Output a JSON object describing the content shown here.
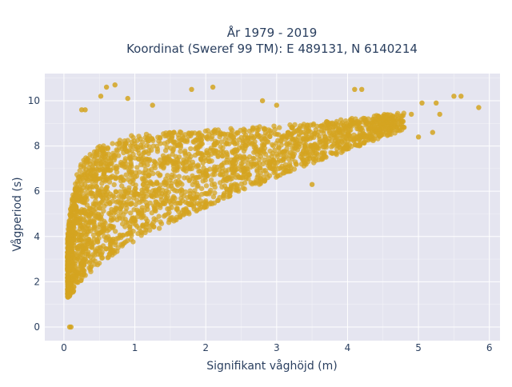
{
  "chart_data": {
    "type": "scatter",
    "title_line1": "År 1979 - 2019",
    "title_line2": "Koordinat (Sweref 99 TM): E 489131, N 6140214",
    "xlabel": "Signifikant våghöjd (m)",
    "ylabel": "Vågperiod (s)",
    "x_ticks": [
      "0",
      "1",
      "2",
      "3",
      "4",
      "5",
      "6"
    ],
    "y_ticks": [
      "0",
      "2",
      "4",
      "6",
      "8",
      "10"
    ],
    "xlim": [
      -0.27,
      6.15
    ],
    "ylim": [
      -0.6,
      11.2
    ],
    "grid": true,
    "marker_color": "#D4A420",
    "background_color": "#E5E5F0",
    "envelope": {
      "x": [
        0.05,
        0.1,
        0.2,
        0.3,
        0.5,
        0.75,
        1.0,
        1.5,
        2.0,
        2.5,
        3.0,
        3.5,
        4.0,
        4.5,
        4.8
      ],
      "y_low": [
        1.3,
        1.4,
        1.9,
        2.2,
        2.8,
        3.3,
        3.8,
        4.6,
        5.3,
        6.0,
        6.6,
        7.2,
        7.8,
        8.4,
        8.7
      ],
      "y_high": [
        4.0,
        5.5,
        7.0,
        7.5,
        8.0,
        8.3,
        8.5,
        8.6,
        8.7,
        8.8,
        8.9,
        9.0,
        9.2,
        9.4,
        9.5
      ]
    },
    "outliers": [
      {
        "x": 0.08,
        "y": 0.0
      },
      {
        "x": 0.1,
        "y": 0.0
      },
      {
        "x": 0.6,
        "y": 10.6
      },
      {
        "x": 0.72,
        "y": 10.7
      },
      {
        "x": 0.52,
        "y": 10.2
      },
      {
        "x": 0.9,
        "y": 10.1
      },
      {
        "x": 1.8,
        "y": 10.5
      },
      {
        "x": 2.1,
        "y": 10.6
      },
      {
        "x": 2.8,
        "y": 10.0
      },
      {
        "x": 4.1,
        "y": 10.5
      },
      {
        "x": 4.2,
        "y": 10.5
      },
      {
        "x": 5.05,
        "y": 9.9
      },
      {
        "x": 5.25,
        "y": 9.9
      },
      {
        "x": 5.5,
        "y": 10.2
      },
      {
        "x": 5.6,
        "y": 10.2
      },
      {
        "x": 5.85,
        "y": 9.7
      },
      {
        "x": 5.0,
        "y": 8.4
      },
      {
        "x": 5.2,
        "y": 8.6
      },
      {
        "x": 4.9,
        "y": 9.4
      },
      {
        "x": 5.3,
        "y": 9.4
      },
      {
        "x": 3.5,
        "y": 6.3
      },
      {
        "x": 0.25,
        "y": 9.6
      },
      {
        "x": 0.3,
        "y": 9.6
      },
      {
        "x": 1.25,
        "y": 9.8
      },
      {
        "x": 3.0,
        "y": 9.8
      }
    ]
  }
}
